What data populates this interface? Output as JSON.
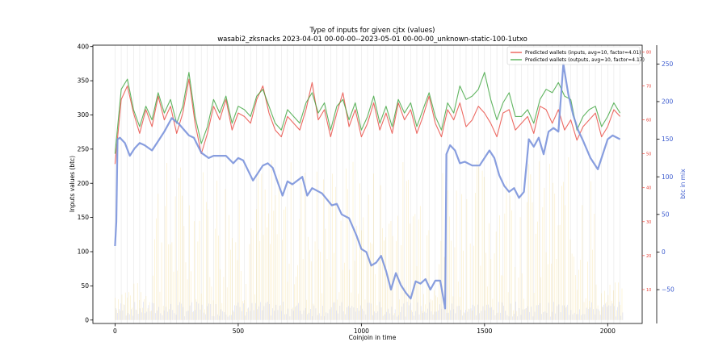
{
  "chart_data": {
    "type": "line",
    "title": "Type of inputs for given cjtx (values)",
    "subtitle": "wasabi2_zksnacks 2023-04-01 00-00-00--2023-05-01 00-00-00_unknown-static-100-1utxo",
    "xlabel": "Coinjoin in time",
    "ylabel": "Inputs values (btc)",
    "y3label": "btc in mix",
    "xlim": [
      -90,
      2140
    ],
    "ylim": [
      -5,
      402
    ],
    "y2lim": [
      0,
      82
    ],
    "y3lim": [
      -95,
      275
    ],
    "xticks": [
      0,
      500,
      1000,
      1500,
      2000
    ],
    "yticks": [
      0,
      50,
      100,
      150,
      200,
      250,
      300,
      350,
      400
    ],
    "y2ticks": [
      10,
      20,
      30,
      40,
      50,
      60,
      70,
      80
    ],
    "y3ticks": [
      -50,
      0,
      50,
      100,
      150,
      200,
      250
    ],
    "x_labels": [
      "0",
      "500",
      "1000",
      "1500",
      "2000"
    ],
    "y_labels": [
      "0",
      "50",
      "100",
      "150",
      "200",
      "250",
      "300",
      "350",
      "400"
    ],
    "y2_labels": [
      "10",
      "20",
      "30",
      "40",
      "50",
      "60",
      "70",
      "80"
    ],
    "y3_labels": [
      "−50",
      "0",
      "50",
      "100",
      "150",
      "200",
      "250"
    ],
    "grid": "vertical",
    "legend_position": "top-right",
    "series": [
      {
        "name": "Predicted wallets (inputs, avg=10, factor=4.01)",
        "axis": "secondary",
        "color": "#e8453c",
        "x": [
          0,
          25,
          50,
          75,
          100,
          125,
          150,
          175,
          200,
          225,
          250,
          275,
          300,
          325,
          350,
          375,
          400,
          425,
          450,
          475,
          500,
          525,
          550,
          575,
          600,
          625,
          650,
          675,
          700,
          725,
          750,
          775,
          800,
          825,
          850,
          875,
          900,
          925,
          950,
          975,
          1000,
          1025,
          1050,
          1075,
          1100,
          1125,
          1150,
          1175,
          1200,
          1225,
          1250,
          1275,
          1300,
          1325,
          1350,
          1375,
          1400,
          1425,
          1450,
          1475,
          1500,
          1525,
          1550,
          1575,
          1600,
          1625,
          1650,
          1675,
          1700,
          1725,
          1750,
          1775,
          1800,
          1825,
          1850,
          1875,
          1900,
          1925,
          1950,
          1975,
          2000,
          2025,
          2050
        ],
        "values": [
          47,
          66,
          70,
          62,
          56,
          63,
          58,
          67,
          60,
          64,
          56,
          62,
          72,
          59,
          50,
          56,
          64,
          60,
          66,
          57,
          62,
          61,
          59,
          66,
          70,
          62,
          57,
          55,
          61,
          59,
          57,
          63,
          71,
          60,
          63,
          55,
          62,
          68,
          58,
          63,
          55,
          59,
          65,
          57,
          62,
          56,
          65,
          60,
          63,
          56,
          61,
          67,
          59,
          55,
          63,
          60,
          65,
          58,
          60,
          64,
          62,
          59,
          55,
          62,
          63,
          57,
          59,
          61,
          56,
          64,
          63,
          59,
          63,
          57,
          60,
          54,
          58,
          60,
          62,
          55,
          58,
          63,
          61
        ]
      },
      {
        "name": "Predicted wallets (outputs, avg=10, factor=4.17)",
        "axis": "secondary",
        "color": "#3aa33a",
        "x": [
          0,
          25,
          50,
          75,
          100,
          125,
          150,
          175,
          200,
          225,
          250,
          275,
          300,
          325,
          350,
          375,
          400,
          425,
          450,
          475,
          500,
          525,
          550,
          575,
          600,
          625,
          650,
          675,
          700,
          725,
          750,
          775,
          800,
          825,
          850,
          875,
          900,
          925,
          950,
          975,
          1000,
          1025,
          1050,
          1075,
          1100,
          1125,
          1150,
          1175,
          1200,
          1225,
          1250,
          1275,
          1300,
          1325,
          1350,
          1375,
          1400,
          1425,
          1450,
          1475,
          1500,
          1525,
          1550,
          1575,
          1600,
          1625,
          1650,
          1675,
          1700,
          1725,
          1750,
          1775,
          1800,
          1825,
          1850,
          1875,
          1900,
          1925,
          1950,
          1975,
          2000,
          2025,
          2050
        ],
        "values": [
          50,
          69,
          72,
          63,
          58,
          64,
          60,
          68,
          62,
          66,
          59,
          64,
          74,
          61,
          53,
          58,
          66,
          62,
          67,
          59,
          64,
          63,
          61,
          67,
          69,
          64,
          59,
          57,
          63,
          61,
          59,
          65,
          68,
          62,
          65,
          57,
          64,
          66,
          60,
          65,
          57,
          61,
          67,
          59,
          64,
          58,
          66,
          62,
          65,
          58,
          63,
          68,
          61,
          57,
          65,
          62,
          70,
          66,
          67,
          69,
          74,
          66,
          60,
          65,
          68,
          61,
          61,
          63,
          59,
          66,
          69,
          68,
          71,
          67,
          66,
          57,
          61,
          63,
          64,
          58,
          61,
          65,
          62
        ]
      },
      {
        "name": "",
        "axis": "tertiary",
        "color": "#7b93dc",
        "x": [
          0,
          5,
          10,
          20,
          40,
          60,
          80,
          100,
          120,
          150,
          180,
          200,
          230,
          260,
          300,
          320,
          350,
          380,
          400,
          420,
          450,
          480,
          500,
          520,
          560,
          600,
          620,
          640,
          660,
          680,
          700,
          720,
          760,
          780,
          800,
          840,
          880,
          900,
          920,
          950,
          980,
          1000,
          1020,
          1040,
          1060,
          1080,
          1100,
          1120,
          1140,
          1160,
          1180,
          1200,
          1220,
          1240,
          1260,
          1280,
          1300,
          1320,
          1340,
          1345,
          1360,
          1380,
          1400,
          1420,
          1450,
          1480,
          1520,
          1540,
          1560,
          1580,
          1600,
          1620,
          1640,
          1660,
          1680,
          1700,
          1720,
          1740,
          1760,
          1780,
          1800,
          1820,
          1840,
          1860,
          1880,
          1900,
          1930,
          1960,
          2000,
          2020,
          2050
        ],
        "values": [
          8,
          40,
          150,
          152,
          145,
          128,
          138,
          145,
          142,
          135,
          150,
          160,
          178,
          170,
          155,
          152,
          132,
          125,
          128,
          128,
          128,
          118,
          125,
          122,
          95,
          115,
          118,
          112,
          93,
          75,
          94,
          90,
          100,
          75,
          85,
          78,
          62,
          64,
          50,
          45,
          22,
          4,
          0,
          -18,
          -14,
          -5,
          -25,
          -50,
          -28,
          -44,
          -54,
          -62,
          -39,
          -42,
          -36,
          -50,
          -38,
          -38,
          -75,
          130,
          142,
          135,
          118,
          120,
          115,
          115,
          135,
          125,
          102,
          88,
          80,
          85,
          72,
          80,
          150,
          140,
          152,
          130,
          160,
          165,
          160,
          250,
          210,
          182,
          162,
          148,
          125,
          110,
          150,
          155,
          150
        ]
      }
    ]
  }
}
